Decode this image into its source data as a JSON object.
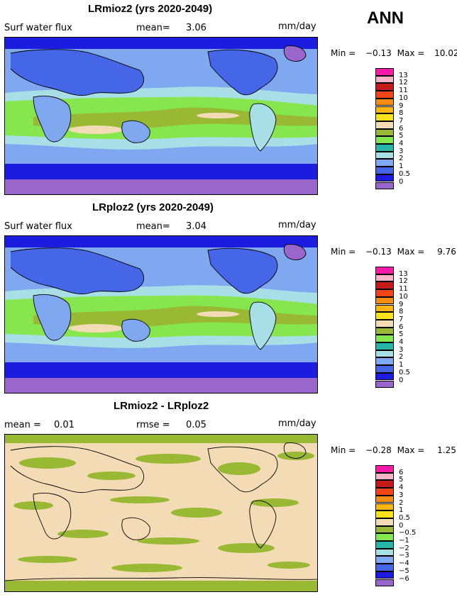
{
  "season": "ANN",
  "units_label": "mm/day",
  "panels": [
    {
      "title": "LRmioz2 (yrs 2020-2049)",
      "left_label": "Surf water flux",
      "stat_label": "mean=",
      "stat_value": "3.06",
      "min_label": "Min =",
      "min_value": "−0.13",
      "max_label": "Max =",
      "max_value": "10.02",
      "colorbar": {
        "colors": [
          "#ff1aa8",
          "#f7b5c6",
          "#c41a1a",
          "#f0461a",
          "#f88c14",
          "#fdb514",
          "#fde21c",
          "#f3dcb5",
          "#99b833",
          "#86e64e",
          "#29b5a6",
          "#a8dfe6",
          "#7fa8f0",
          "#4566e6",
          "#1c1ce0",
          "#9966cc"
        ],
        "labels": [
          "13",
          "12",
          "11",
          "10",
          "9",
          "8",
          "7",
          "6",
          "5",
          "4",
          "3",
          "2",
          "1",
          "0.5",
          "0"
        ]
      }
    },
    {
      "title": "LRploz2 (yrs 2020-2049)",
      "left_label": "Surf water flux",
      "stat_label": "mean=",
      "stat_value": "3.04",
      "min_label": "Min =",
      "min_value": "−0.13",
      "max_label": "Max =",
      "max_value": "9.76",
      "colorbar": {
        "colors": [
          "#ff1aa8",
          "#f7b5c6",
          "#c41a1a",
          "#f0461a",
          "#f88c14",
          "#fdb514",
          "#fde21c",
          "#f3dcb5",
          "#99b833",
          "#86e64e",
          "#29b5a6",
          "#a8dfe6",
          "#7fa8f0",
          "#4566e6",
          "#1c1ce0",
          "#9966cc"
        ],
        "labels": [
          "13",
          "12",
          "11",
          "10",
          "9",
          "8",
          "7",
          "6",
          "5",
          "4",
          "3",
          "2",
          "1",
          "0.5",
          "0"
        ]
      }
    },
    {
      "title": "LRmioz2 - LRploz2",
      "left_label": "mean =",
      "left_value": "0.01",
      "stat_label": "rmse =",
      "stat_value": "0.05",
      "min_label": "Min =",
      "min_value": "−0.28",
      "max_label": "Max =",
      "max_value": "1.25",
      "colorbar": {
        "colors": [
          "#ff1aa8",
          "#f7b5c6",
          "#c41a1a",
          "#f0461a",
          "#f88c14",
          "#fdb514",
          "#fde21c",
          "#f3dcb5",
          "#99b833",
          "#86e64e",
          "#29b5a6",
          "#a8dfe6",
          "#7fa8f0",
          "#4566e6",
          "#1c1ce0",
          "#9966cc"
        ],
        "labels": [
          "6",
          "5",
          "4",
          "3",
          "2",
          "1",
          "0.5",
          "0",
          "−0.5",
          "−1",
          "−2",
          "−3",
          "−4",
          "−5",
          "−6"
        ]
      }
    }
  ]
}
